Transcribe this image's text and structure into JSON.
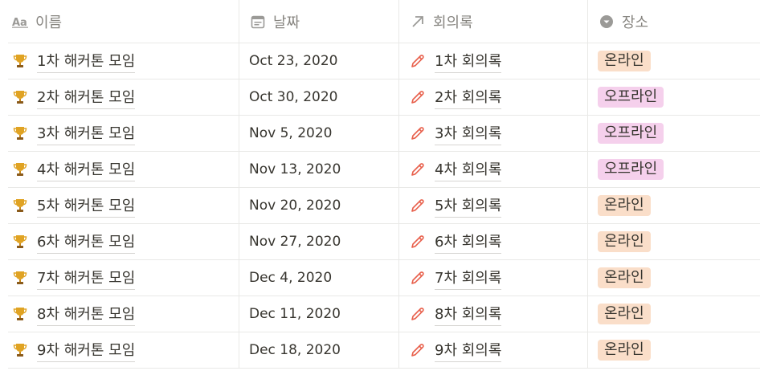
{
  "columns": [
    {
      "label": "이름",
      "icon": "text-property-icon"
    },
    {
      "label": "날짜",
      "icon": "calendar-icon"
    },
    {
      "label": "회의록",
      "icon": "relation-arrow-icon"
    },
    {
      "label": "장소",
      "icon": "select-chevron-icon"
    }
  ],
  "rows": [
    {
      "name": "1차 해커톤 모임",
      "date": "Oct 23, 2020",
      "minutes": "1차 회의록",
      "place": "온라인",
      "place_type": "online"
    },
    {
      "name": "2차 해커톤 모임",
      "date": "Oct 30, 2020",
      "minutes": "2차 회의록",
      "place": "오프라인",
      "place_type": "offline"
    },
    {
      "name": "3차 해커톤 모임",
      "date": "Nov 5, 2020",
      "minutes": "3차 회의록",
      "place": "오프라인",
      "place_type": "offline"
    },
    {
      "name": "4차 해커톤 모임",
      "date": "Nov 13, 2020",
      "minutes": "4차 회의록",
      "place": "오프라인",
      "place_type": "offline"
    },
    {
      "name": "5차 해커톤 모임",
      "date": "Nov 20, 2020",
      "minutes": "5차 회의록",
      "place": "온라인",
      "place_type": "online"
    },
    {
      "name": "6차 해커톤 모임",
      "date": "Nov 27, 2020",
      "minutes": "6차 회의록",
      "place": "온라인",
      "place_type": "online"
    },
    {
      "name": "7차 해커톤 모임",
      "date": "Dec 4, 2020",
      "minutes": "7차 회의록",
      "place": "온라인",
      "place_type": "online"
    },
    {
      "name": "8차 해커톤 모임",
      "date": "Dec 11, 2020",
      "minutes": "8차 회의록",
      "place": "온라인",
      "place_type": "online"
    },
    {
      "name": "9차 해커톤 모임",
      "date": "Dec 18, 2020",
      "minutes": "9차 회의록",
      "place": "온라인",
      "place_type": "online"
    }
  ],
  "colors": {
    "online_tag": "#fadec9",
    "offline_tag": "#f5d0ec",
    "trophy": "#e0a323",
    "pencil": "#e8604c",
    "header_text": "#878580",
    "border": "#e9e9e7"
  },
  "icons": {
    "row_title_icon": "trophy-icon",
    "relation_page_icon": "pencil-icon"
  }
}
